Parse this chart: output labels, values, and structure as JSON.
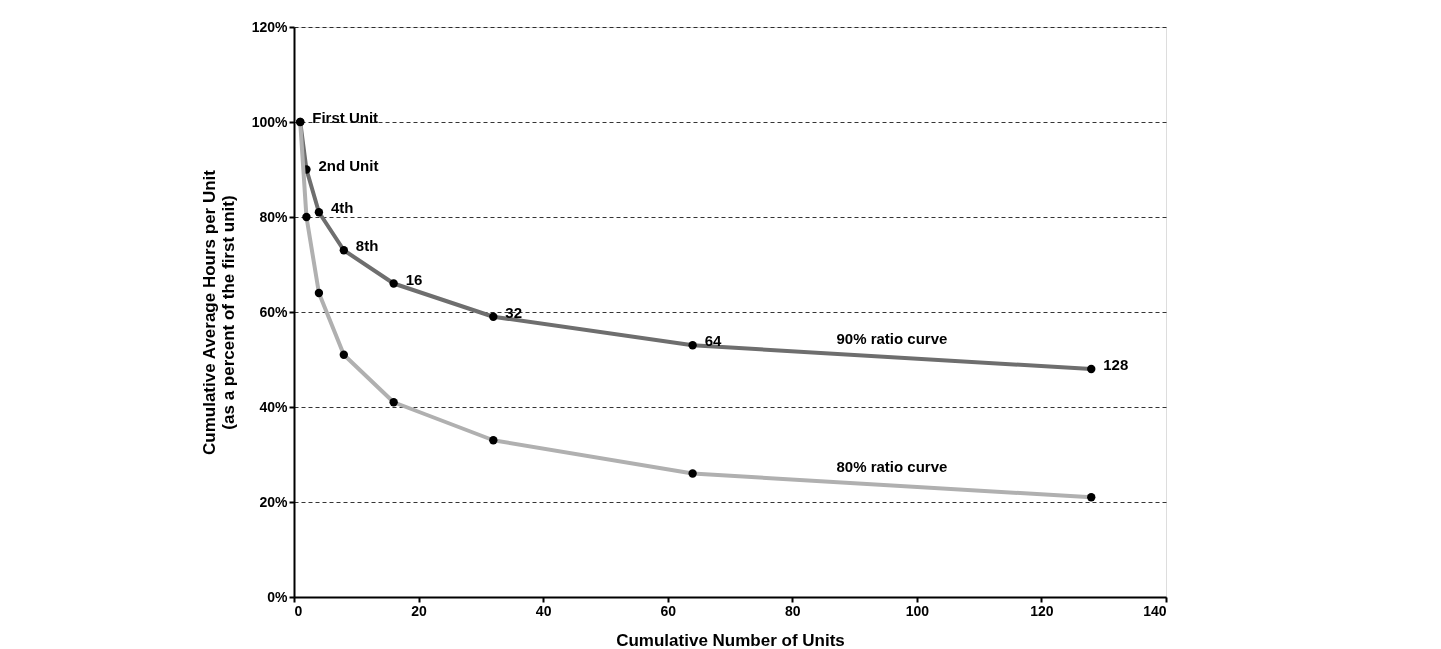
{
  "chart_data": {
    "type": "line",
    "xlabel": "Cumulative Number of Units",
    "ylabel": "Cumulative Average Hours per Unit\n(as a percent of the first unit)",
    "x": [
      1,
      2,
      4,
      8,
      16,
      32,
      64,
      128
    ],
    "series": [
      {
        "name": "90% ratio curve",
        "color": "#6e6e6e",
        "values": [
          100,
          90,
          81,
          73,
          66,
          59,
          53,
          48
        ]
      },
      {
        "name": "80% ratio curve",
        "color": "#b0b0b0",
        "values": [
          100,
          80,
          64,
          51,
          41,
          33,
          26,
          21
        ]
      }
    ],
    "xlim": [
      0,
      140
    ],
    "xticks": [
      0,
      20,
      40,
      60,
      80,
      100,
      120,
      140
    ],
    "ylim": [
      0,
      120
    ],
    "yticks": [
      {
        "value": 0,
        "label": "0%"
      },
      {
        "value": 20,
        "label": "20%"
      },
      {
        "value": 40,
        "label": "40%"
      },
      {
        "value": 60,
        "label": "60%"
      },
      {
        "value": 80,
        "label": "80%"
      },
      {
        "value": 100,
        "label": "100%"
      },
      {
        "value": 120,
        "label": "120%"
      }
    ],
    "annotations": [
      {
        "text": "First Unit",
        "x": 1,
        "y": 100
      },
      {
        "text": "2nd Unit",
        "x": 2,
        "y": 90
      },
      {
        "text": "4th",
        "x": 4,
        "y": 81
      },
      {
        "text": "8th",
        "x": 8,
        "y": 73
      },
      {
        "text": "16",
        "x": 16,
        "y": 66
      },
      {
        "text": "32",
        "x": 32,
        "y": 59
      },
      {
        "text": "64",
        "x": 64,
        "y": 53
      },
      {
        "text": "128",
        "x": 128,
        "y": 48
      }
    ],
    "grid": "y",
    "marker": "circle",
    "line_style": "solid"
  }
}
